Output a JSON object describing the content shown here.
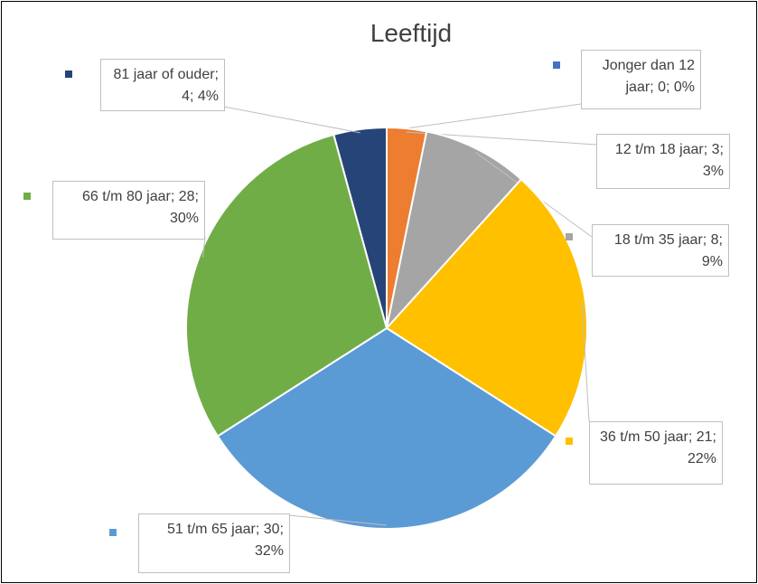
{
  "chart_data": {
    "type": "pie",
    "title": "Leeftijd",
    "categories": [
      "Jonger dan 12 jaar",
      "12 t/m 18 jaar",
      "18  t/m 35 jaar",
      "36  t/m 50 jaar",
      "51  t/m 65 jaar",
      "66  t/m 80 jaar",
      "81 jaar of ouder"
    ],
    "values": [
      0,
      3,
      8,
      21,
      30,
      28,
      4
    ],
    "percent_labels": [
      "0%",
      "3%",
      "9%",
      "22%",
      "32%",
      "30%",
      "4%"
    ],
    "label_separator": "; ",
    "colors": [
      "#4472c4",
      "#ed7d31",
      "#a5a5a5",
      "#ffc000",
      "#5b9bd5",
      "#70ad47",
      "#264478"
    ]
  }
}
